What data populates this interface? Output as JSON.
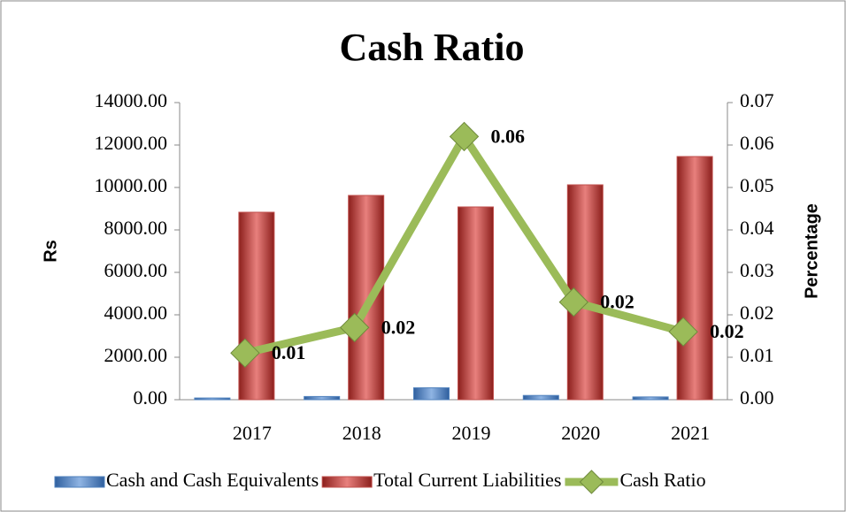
{
  "chart_data": {
    "type": "bar",
    "title": "Cash Ratio",
    "y_label": "Rs",
    "y2_label": "Percentage",
    "categories": [
      "2017",
      "2018",
      "2019",
      "2020",
      "2021"
    ],
    "series": [
      {
        "name": "Cash and Cash Equivalents",
        "color": "#4f81bd",
        "values": [
          80,
          150,
          560,
          200,
          130
        ]
      },
      {
        "name": "Total Current Liabilities",
        "color": "#c0504d",
        "values": [
          8833,
          9625,
          9083,
          10125,
          11458
        ]
      },
      {
        "name": "Cash Ratio",
        "type": "line",
        "axis": "y2",
        "color": "#9bbb59",
        "values": [
          0.011,
          0.017,
          0.062,
          0.023,
          0.016
        ],
        "value_labels": [
          "0.01",
          "0.02",
          "0.06",
          "0.02",
          "0.02"
        ]
      }
    ],
    "ylim": [
      0,
      14000
    ],
    "yticks": [
      {
        "value": 0,
        "label": "0.00"
      },
      {
        "value": 2000,
        "label": "2000.00"
      },
      {
        "value": 4000,
        "label": "4000.00"
      },
      {
        "value": 6000,
        "label": "6000.00"
      },
      {
        "value": 8000,
        "label": "8000.00"
      },
      {
        "value": 10000,
        "label": "10000.00"
      },
      {
        "value": 12000,
        "label": "12000.00"
      },
      {
        "value": 14000,
        "label": "14000.00"
      }
    ],
    "y2lim": [
      0,
      0.07
    ],
    "y2ticks": [
      {
        "value": 0,
        "label": "0.00"
      },
      {
        "value": 0.01,
        "label": "0.01"
      },
      {
        "value": 0.02,
        "label": "0.02"
      },
      {
        "value": 0.03,
        "label": "0.03"
      },
      {
        "value": 0.04,
        "label": "0.04"
      },
      {
        "value": 0.05,
        "label": "0.05"
      },
      {
        "value": 0.06,
        "label": "0.06"
      },
      {
        "value": 0.07,
        "label": "0.07"
      }
    ],
    "grid": true,
    "legend": "bottom"
  }
}
